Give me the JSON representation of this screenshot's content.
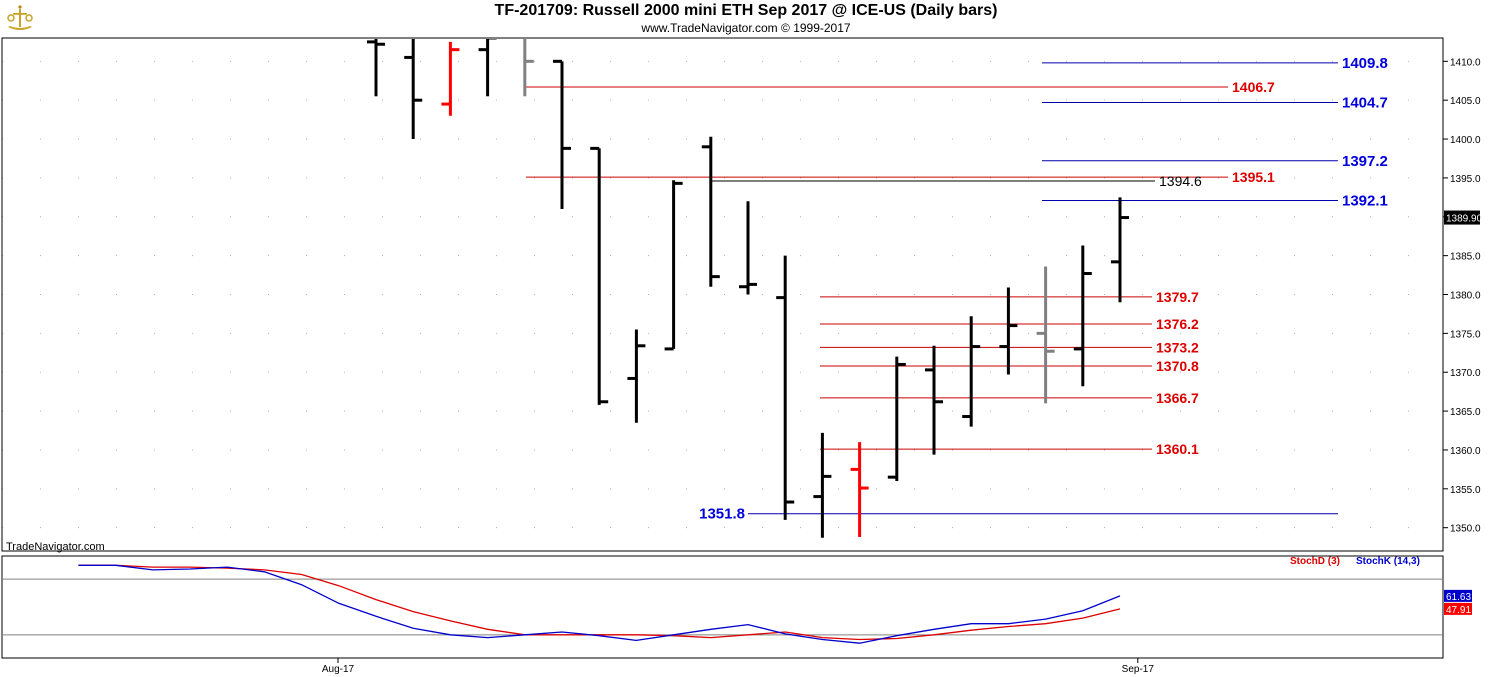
{
  "header": {
    "title": "TF-201709:  Russell 2000 mini ETH Sep 2017 @ ICE-US  (Daily bars)",
    "copyright": "www.TradeNavigator.com © 1999-2017"
  },
  "watermark": "TradeNavigator.com",
  "colors": {
    "up_bar": "#000000",
    "down_bar": "#ff0000",
    "neutral_bar": "#808080",
    "red_level": "#cc0000",
    "blue_level": "#0000aa",
    "stoch_d": "#dd0000",
    "stoch_k": "#0000cc"
  },
  "chart_data": [
    {
      "type": "ohlc",
      "y_axis": {
        "ylim": [
          1347,
          1413
        ],
        "ticks": [
          1350,
          1355,
          1360,
          1365,
          1370,
          1375,
          1380,
          1385,
          1390,
          1395,
          1400,
          1405,
          1410
        ],
        "tick_labels": [
          "1350.0",
          "1355.0",
          "1360.0",
          "1365.0",
          "1370.0",
          "1375.0",
          "1380.0",
          "1385.0",
          "1390.0",
          "1395.0",
          "1400.0",
          "1405.0",
          "1410.0"
        ],
        "last_price_label": "1389.90",
        "last_price": 1389.9
      },
      "x_axis": {
        "month_labels": [
          {
            "label": "Aug-17",
            "bar_index": 0
          },
          {
            "label": "Sep-17",
            "bar_index": 21.5
          }
        ]
      },
      "bars": [
        {
          "o": 1412.5,
          "h": 1413.5,
          "l": 1405.5,
          "c": 1412.2,
          "color": "black"
        },
        {
          "o": 1410.5,
          "h": 1413.5,
          "l": 1400.0,
          "c": 1405.0,
          "color": "black"
        },
        {
          "o": 1404.5,
          "h": 1412.5,
          "l": 1403.0,
          "c": 1411.5,
          "color": "red"
        },
        {
          "o": 1411.5,
          "h": 1413.5,
          "l": 1405.5,
          "c": 1413.0,
          "color": "black"
        },
        {
          "o": 1413.5,
          "h": 1413.5,
          "l": 1405.5,
          "c": 1410.0,
          "color": "gray"
        },
        {
          "o": 1410.0,
          "h": 1410.0,
          "l": 1391.0,
          "c": 1398.8,
          "color": "black"
        },
        {
          "o": 1398.8,
          "h": 1398.8,
          "l": 1365.8,
          "c": 1366.2,
          "color": "black"
        },
        {
          "o": 1369.2,
          "h": 1375.5,
          "l": 1363.5,
          "c": 1373.4,
          "color": "black"
        },
        {
          "o": 1373.0,
          "h": 1394.7,
          "l": 1373.0,
          "c": 1394.3,
          "color": "black"
        },
        {
          "o": 1399.0,
          "h": 1400.3,
          "l": 1381.0,
          "c": 1382.3,
          "color": "black"
        },
        {
          "o": 1381.0,
          "h": 1392.0,
          "l": 1380.0,
          "c": 1381.3,
          "color": "black"
        },
        {
          "o": 1379.6,
          "h": 1385.0,
          "l": 1351.0,
          "c": 1353.3,
          "color": "black"
        },
        {
          "o": 1354.0,
          "h": 1362.2,
          "l": 1348.7,
          "c": 1356.6,
          "color": "black"
        },
        {
          "o": 1357.5,
          "h": 1361.0,
          "l": 1348.8,
          "c": 1355.1,
          "color": "red"
        },
        {
          "o": 1356.5,
          "h": 1372.0,
          "l": 1356.0,
          "c": 1371.0,
          "color": "black"
        },
        {
          "o": 1370.3,
          "h": 1373.4,
          "l": 1359.4,
          "c": 1366.2,
          "color": "black"
        },
        {
          "o": 1364.3,
          "h": 1377.2,
          "l": 1363.0,
          "c": 1373.3,
          "color": "black"
        },
        {
          "o": 1373.3,
          "h": 1380.9,
          "l": 1369.7,
          "c": 1376.0,
          "color": "black"
        },
        {
          "o": 1375.0,
          "h": 1383.6,
          "l": 1366.0,
          "c": 1372.7,
          "color": "gray"
        },
        {
          "o": 1373.0,
          "h": 1386.3,
          "l": 1368.2,
          "c": 1382.7,
          "color": "black"
        },
        {
          "o": 1384.2,
          "h": 1392.5,
          "l": 1379.0,
          "c": 1389.9,
          "color": "black"
        }
      ],
      "levels": [
        {
          "value": 1409.8,
          "label": "1409.8",
          "color": "blue"
        },
        {
          "value": 1406.7,
          "label": "1406.7",
          "color": "red"
        },
        {
          "value": 1404.7,
          "label": "1404.7",
          "color": "blue"
        },
        {
          "value": 1397.2,
          "label": "1397.2",
          "color": "blue"
        },
        {
          "value": 1395.1,
          "label": "1395.1",
          "color": "red"
        },
        {
          "value": 1394.6,
          "label": "1394.6",
          "color": "black"
        },
        {
          "value": 1392.1,
          "label": "1392.1",
          "color": "blue"
        },
        {
          "value": 1379.7,
          "label": "1379.7",
          "color": "red"
        },
        {
          "value": 1376.2,
          "label": "1376.2",
          "color": "red"
        },
        {
          "value": 1373.2,
          "label": "1373.2",
          "color": "red"
        },
        {
          "value": 1370.8,
          "label": "1370.8",
          "color": "red"
        },
        {
          "value": 1366.7,
          "label": "1366.7",
          "color": "red"
        },
        {
          "value": 1360.1,
          "label": "1360.1",
          "color": "red"
        },
        {
          "value": 1351.8,
          "label": "1351.8",
          "color": "blue"
        }
      ]
    },
    {
      "type": "line",
      "ylim": [
        -5,
        105
      ],
      "reference_lines": [
        80,
        20
      ],
      "legend": [
        {
          "name": "StochD (3)",
          "color": "red"
        },
        {
          "name": "StochK (14,3)",
          "color": "blue"
        }
      ],
      "last_values": {
        "stoch_k": "61.63",
        "stoch_d": "47.91"
      },
      "x": [
        -8,
        -7,
        -6,
        -5,
        -4,
        -3,
        -2,
        -1,
        0,
        1,
        2,
        3,
        4,
        5,
        6,
        7,
        8,
        9,
        10,
        11,
        12,
        13,
        14,
        15,
        16,
        17,
        18,
        19,
        20
      ],
      "series": [
        {
          "name": "StochD (3)",
          "color": "red",
          "values": [
            95,
            95,
            93,
            93,
            92,
            90,
            85,
            73,
            58,
            45,
            35,
            26,
            20,
            20,
            20,
            20,
            19,
            17,
            20,
            23,
            17,
            15,
            16,
            20,
            25,
            29,
            32,
            38,
            48
          ]
        },
        {
          "name": "StochK (14,3)",
          "color": "blue",
          "values": [
            95,
            95,
            90,
            91,
            93,
            88,
            74,
            54,
            40,
            27,
            20,
            17,
            20,
            23,
            19,
            14,
            20,
            26,
            31,
            21,
            15,
            11,
            19,
            26,
            32,
            32,
            37,
            46,
            62
          ]
        }
      ]
    }
  ]
}
